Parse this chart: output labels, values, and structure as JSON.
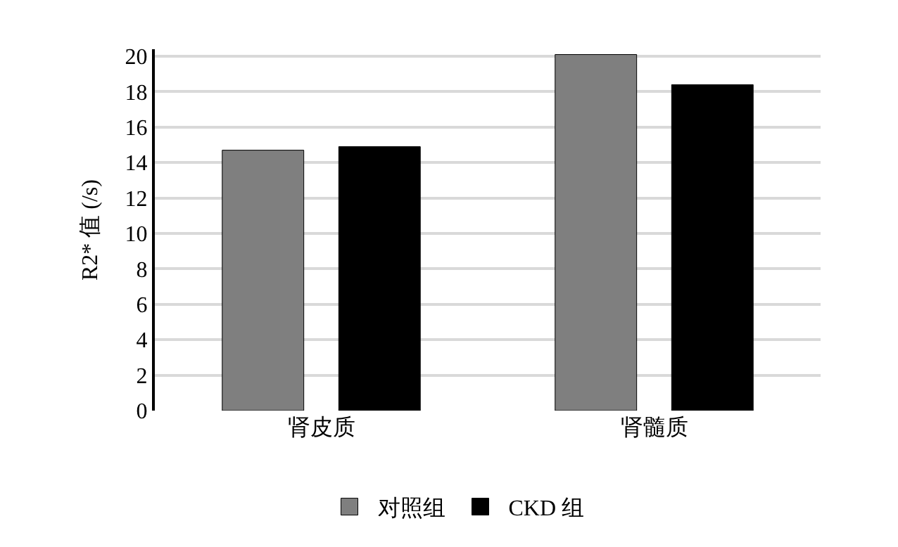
{
  "chart_data": {
    "type": "bar",
    "ylabel": "R2* 值 (/s)",
    "categories": [
      "肾皮质",
      "肾髓质"
    ],
    "series": [
      {
        "name": "对照组",
        "color": "#7f7f7f",
        "values": [
          14.7,
          20.1
        ]
      },
      {
        "name": "CKD 组",
        "color": "#000000",
        "values": [
          14.9,
          18.4
        ]
      }
    ],
    "ylim": [
      0,
      20.4
    ],
    "yticks": [
      0,
      2,
      4,
      6,
      8,
      10,
      12,
      14,
      16,
      18,
      20
    ],
    "grid": "y",
    "legend": "bottom"
  }
}
